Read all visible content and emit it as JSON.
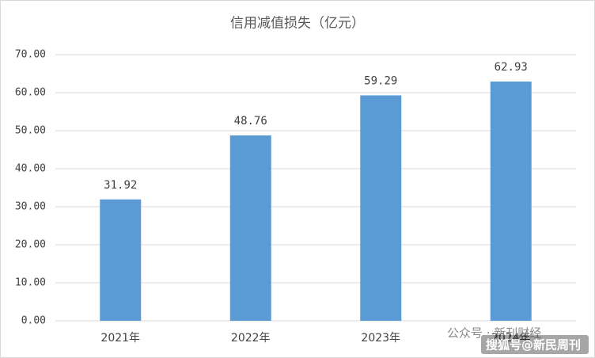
{
  "chart_data": {
    "type": "bar",
    "title": "信用减值损失（亿元）",
    "categories": [
      "2021年",
      "2022年",
      "2023年",
      "2024年"
    ],
    "values": [
      31.92,
      48.76,
      59.29,
      62.93
    ],
    "color": "#5b9bd5",
    "ylim": [
      0,
      70
    ],
    "yticks": [
      {
        "value": 0,
        "label": "0.00"
      },
      {
        "value": 10,
        "label": "10.00"
      },
      {
        "value": 20,
        "label": "20.00"
      },
      {
        "value": 30,
        "label": "30.00"
      },
      {
        "value": 40,
        "label": "40.00"
      },
      {
        "value": 50,
        "label": "50.00"
      },
      {
        "value": 60,
        "label": "60.00"
      },
      {
        "value": 70,
        "label": "70.00"
      }
    ],
    "grid": true
  },
  "watermarks": [
    "公众号 · 新刊财经",
    "搜狐号@新民周刊"
  ]
}
